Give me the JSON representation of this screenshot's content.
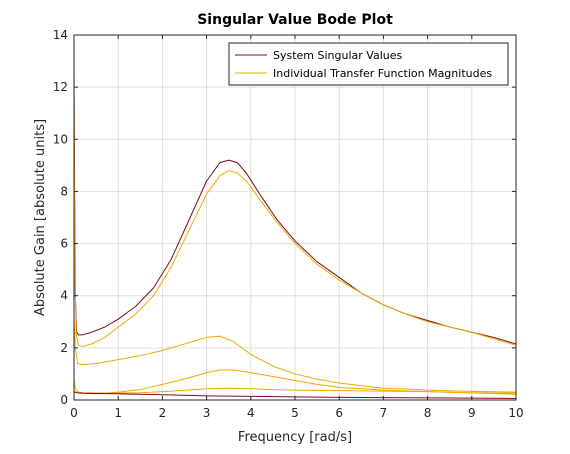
{
  "chart_data": {
    "type": "line",
    "title": "Singular Value Bode Plot",
    "xlabel": "Frequency [rad/s]",
    "ylabel": "Absolute Gain [absolute units]",
    "xlim": [
      0,
      10
    ],
    "ylim": [
      0,
      14
    ],
    "xticks": [
      "0",
      "1",
      "2",
      "3",
      "4",
      "5",
      "6",
      "7",
      "8",
      "9",
      "10"
    ],
    "yticks": [
      "0",
      "2",
      "4",
      "6",
      "8",
      "10",
      "12",
      "14"
    ],
    "grid": true,
    "legend_position": "top-right",
    "legend": [
      {
        "label": "System Singular Values",
        "color": "#7a0a1e"
      },
      {
        "label": "Individual Transfer Function Magnitudes",
        "color": "#f0a800"
      }
    ],
    "series": [
      {
        "name": "System Singular Values",
        "color": "#7a0a1e",
        "x": [
          0.0,
          0.01,
          0.03,
          0.06,
          0.1,
          0.2,
          0.4,
          0.7,
          1.0,
          1.4,
          1.8,
          2.2,
          2.6,
          3.0,
          3.3,
          3.5,
          3.7,
          3.9,
          4.2,
          4.6,
          5.0,
          5.5,
          6.0,
          6.5,
          7.0,
          7.5,
          8.0,
          8.5,
          9.0,
          9.5,
          10.0
        ],
        "y": [
          12.5,
          9.0,
          4.0,
          2.6,
          2.5,
          2.5,
          2.6,
          2.8,
          3.1,
          3.6,
          4.3,
          5.4,
          6.9,
          8.4,
          9.1,
          9.2,
          9.1,
          8.7,
          7.9,
          6.9,
          6.1,
          5.3,
          4.7,
          4.1,
          3.65,
          3.3,
          3.05,
          2.8,
          2.6,
          2.4,
          2.15
        ]
      },
      {
        "name": "Individual Transfer Function Magnitudes",
        "color": "#f0a800",
        "x": [
          0.0,
          0.02,
          0.05,
          0.1,
          0.2,
          0.4,
          0.7,
          1.0,
          1.4,
          1.8,
          2.2,
          2.6,
          3.0,
          3.3,
          3.5,
          3.7,
          3.9,
          4.2,
          4.6,
          5.0,
          5.5,
          6.0,
          6.5,
          7.0,
          7.5,
          8.0,
          8.5,
          9.0,
          9.5,
          10.0
        ],
        "y": [
          12.0,
          5.0,
          2.5,
          2.1,
          2.05,
          2.15,
          2.4,
          2.8,
          3.3,
          4.0,
          5.1,
          6.5,
          7.9,
          8.6,
          8.8,
          8.7,
          8.4,
          7.7,
          6.8,
          6.0,
          5.2,
          4.6,
          4.1,
          3.65,
          3.3,
          3.0,
          2.8,
          2.6,
          2.35,
          2.1
        ]
      },
      {
        "name": "",
        "color": "#f0a800",
        "x": [
          0.0,
          0.03,
          0.08,
          0.2,
          0.5,
          1.0,
          1.5,
          2.0,
          2.5,
          3.0,
          3.3,
          3.6,
          4.0,
          4.5,
          5.0,
          5.5,
          6.0,
          6.5,
          7.0,
          7.5,
          8.0,
          9.0,
          10.0
        ],
        "y": [
          3.2,
          2.0,
          1.4,
          1.35,
          1.4,
          1.55,
          1.7,
          1.9,
          2.15,
          2.4,
          2.45,
          2.25,
          1.75,
          1.3,
          1.0,
          0.8,
          0.65,
          0.55,
          0.45,
          0.42,
          0.38,
          0.33,
          0.3
        ]
      },
      {
        "name": "",
        "color": "#f0a800",
        "x": [
          0.0,
          0.03,
          0.1,
          0.3,
          0.6,
          1.0,
          1.5,
          2.0,
          2.5,
          3.0,
          3.3,
          3.6,
          4.0,
          4.5,
          5.0,
          5.5,
          6.0,
          7.0,
          8.0,
          9.0,
          10.0
        ],
        "y": [
          0.8,
          0.45,
          0.3,
          0.25,
          0.25,
          0.3,
          0.4,
          0.6,
          0.8,
          1.05,
          1.15,
          1.15,
          1.05,
          0.9,
          0.75,
          0.6,
          0.48,
          0.38,
          0.32,
          0.27,
          0.22
        ]
      },
      {
        "name": "",
        "color": "#f0a800",
        "x": [
          0.0,
          0.05,
          0.2,
          0.5,
          1.0,
          1.5,
          2.0,
          2.5,
          3.0,
          3.5,
          4.0,
          4.5,
          5.0,
          6.0,
          7.0,
          8.0,
          9.0,
          10.0
        ],
        "y": [
          0.35,
          0.3,
          0.28,
          0.27,
          0.27,
          0.28,
          0.32,
          0.37,
          0.43,
          0.45,
          0.43,
          0.4,
          0.38,
          0.36,
          0.34,
          0.32,
          0.28,
          0.26
        ]
      },
      {
        "name": "",
        "color": "#7a0a1e",
        "x": [
          0.0,
          0.05,
          0.2,
          0.5,
          1.0,
          1.5,
          2.0,
          2.5,
          3.0,
          3.5,
          4.0,
          5.0,
          6.0,
          7.0,
          8.0,
          9.0,
          10.0
        ],
        "y": [
          0.3,
          0.28,
          0.26,
          0.25,
          0.24,
          0.22,
          0.2,
          0.18,
          0.16,
          0.15,
          0.14,
          0.12,
          0.1,
          0.09,
          0.08,
          0.07,
          0.06
        ]
      }
    ]
  }
}
